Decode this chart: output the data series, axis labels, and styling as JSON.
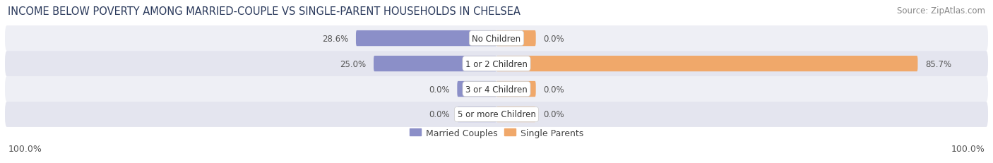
{
  "title": "INCOME BELOW POVERTY AMONG MARRIED-COUPLE VS SINGLE-PARENT HOUSEHOLDS IN CHELSEA",
  "source": "Source: ZipAtlas.com",
  "categories": [
    "No Children",
    "1 or 2 Children",
    "3 or 4 Children",
    "5 or more Children"
  ],
  "married_values": [
    28.6,
    25.0,
    0.0,
    0.0
  ],
  "single_values": [
    0.0,
    85.7,
    0.0,
    0.0
  ],
  "married_color": "#8b8fc8",
  "single_color": "#f0a86a",
  "married_label": "Married Couples",
  "single_label": "Single Parents",
  "row_bg_light": "#eeeff5",
  "row_bg_dark": "#e4e5ef",
  "axis_label_left": "100.0%",
  "axis_label_right": "100.0%",
  "max_val": 100.0,
  "stub_val": 8.0,
  "title_fontsize": 10.5,
  "source_fontsize": 8.5,
  "label_fontsize": 9,
  "cat_fontsize": 8.5,
  "val_fontsize": 8.5,
  "background_color": "#ffffff",
  "title_color": "#2b3a5c",
  "source_color": "#888888",
  "val_color": "#555555",
  "cat_color": "#333333"
}
